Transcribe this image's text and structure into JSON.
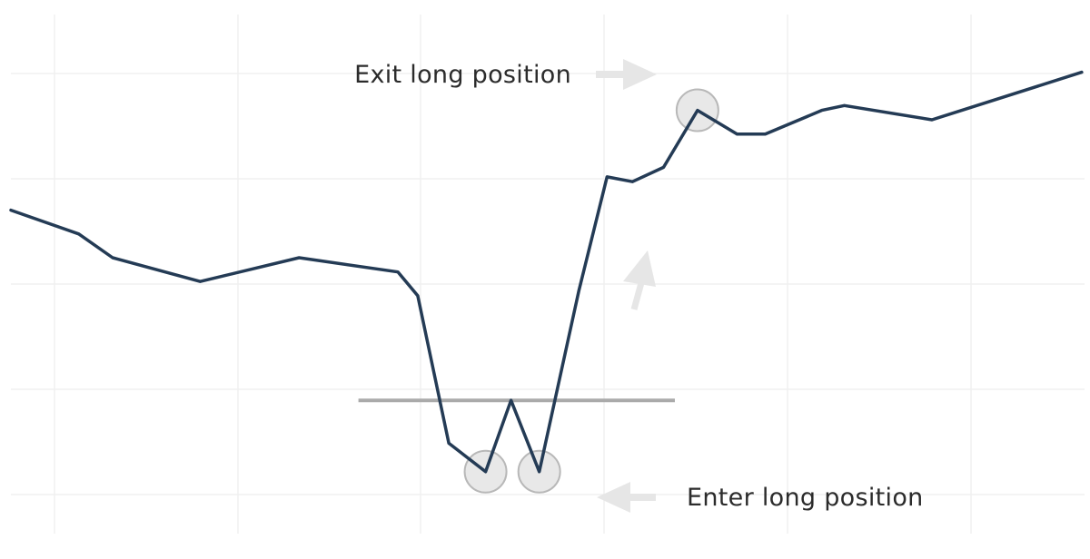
{
  "chart_data": {
    "type": "line",
    "title": "",
    "xlabel": "",
    "ylabel": "",
    "xlim": [
      0,
      38
    ],
    "ylim": [
      0,
      10
    ],
    "grid": true,
    "series": [
      {
        "color": "#243b55",
        "x": [
          0,
          2.4,
          3.6,
          6.7,
          10.2,
          13.7,
          14.4,
          15.5,
          16.8,
          17.7,
          18.7,
          20.1,
          21.1,
          22.0,
          23.1,
          24.3,
          25.7,
          26.7,
          28.7,
          29.5,
          32.6,
          37.9
        ],
        "y": [
          6.0,
          5.5,
          5.0,
          4.5,
          5.0,
          4.7,
          4.2,
          1.1,
          0.5,
          2.0,
          0.5,
          4.3,
          6.7,
          6.6,
          6.9,
          8.1,
          7.6,
          7.6,
          8.1,
          8.2,
          7.9,
          8.9
        ]
      }
    ],
    "reference_line": {
      "y": 2.0,
      "x_start": 12.3,
      "x_end": 23.5,
      "color": "#aaaaaa"
    },
    "markers": [
      {
        "x": 16.8,
        "y": 0.5
      },
      {
        "x": 18.7,
        "y": 0.5
      },
      {
        "x": 24.3,
        "y": 8.1
      }
    ],
    "annotations": [
      {
        "text": "Exit long position",
        "x": 24.3,
        "y": 8.1
      },
      {
        "text": "Enter long position",
        "x": 18.7,
        "y": 0.5
      }
    ],
    "colors": {
      "line": "#243b55",
      "marker_fill": "#e8e8e8",
      "marker_stroke": "#b8b8b8",
      "arrow": "#e6e6e6",
      "grid": "#f0f0f0"
    }
  }
}
